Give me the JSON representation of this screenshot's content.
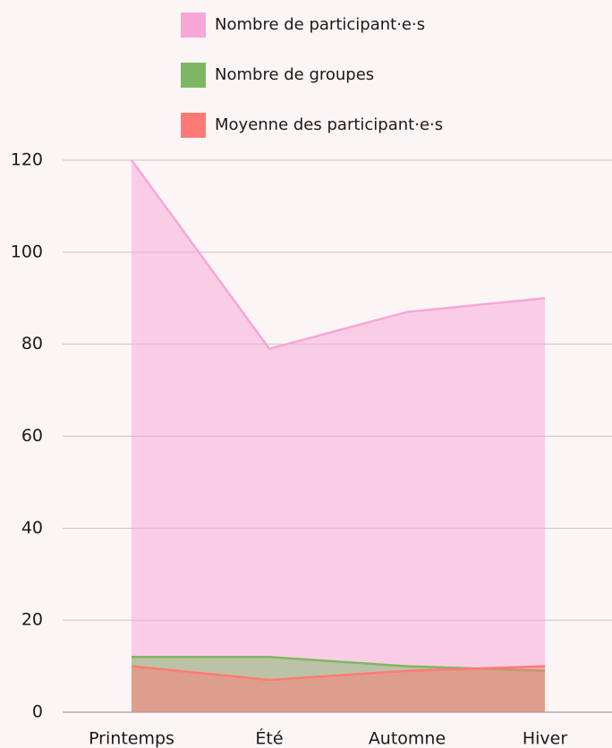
{
  "chart_data": {
    "type": "area",
    "categories": [
      "Printemps",
      "Été",
      "Automne",
      "Hiver"
    ],
    "series": [
      {
        "name": "Nombre de participant·e·s",
        "color": "#f7a6d8",
        "values": [
          120,
          79,
          87,
          90
        ]
      },
      {
        "name": "Nombre de groupes",
        "color": "#7eb764",
        "values": [
          12,
          12,
          10,
          9
        ]
      },
      {
        "name": "Moyenne des participant·e·s",
        "color": "#ff7a75",
        "values": [
          10,
          7,
          9,
          10
        ]
      }
    ],
    "ylim": [
      0,
      120
    ],
    "yticks": [
      0,
      20,
      40,
      60,
      80,
      100,
      120
    ],
    "grid": true,
    "legend": "top"
  }
}
